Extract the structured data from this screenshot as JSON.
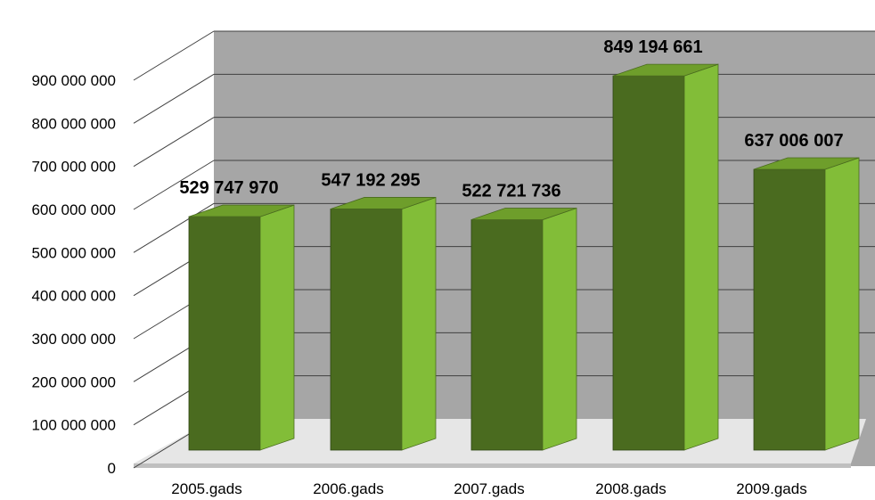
{
  "chart_data": {
    "type": "bar",
    "style": "3d-columns",
    "categories": [
      "2005.gads",
      "2006.gads",
      "2007.gads",
      "2008.gads",
      "2009.gads"
    ],
    "values": [
      529747970,
      547192295,
      522721736,
      849194661,
      637006007
    ],
    "value_labels": [
      "529 747 970",
      "547 192 295",
      "522 721 736",
      "849 194 661",
      "637 006 007"
    ],
    "y_ticks": [
      0,
      100000000,
      200000000,
      300000000,
      400000000,
      500000000,
      600000000,
      700000000,
      800000000,
      900000000
    ],
    "y_tick_labels": [
      "0",
      "100 000 000",
      "200 000 000",
      "300 000 000",
      "400 000 000",
      "500 000 000",
      "600 000 000",
      "700 000 000",
      "800 000 000",
      "900 000 000"
    ],
    "ylim": [
      0,
      900000000
    ],
    "title": "",
    "xlabel": "",
    "ylabel": "",
    "grid": true,
    "legend": "none",
    "colors": {
      "bar_front": "#4a6b1f",
      "bar_side": "#82bd38",
      "bar_top": "#6e9e2b",
      "back_wall": "#a6a6a6",
      "floor": "#e6e6e6",
      "floor_edge": "#bfbfbf",
      "gridline": "#404040"
    }
  }
}
